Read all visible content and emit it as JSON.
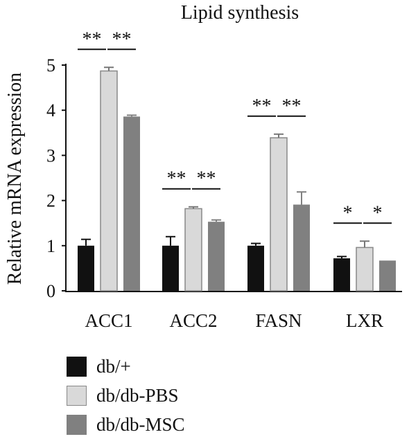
{
  "chart_data": {
    "type": "bar",
    "title": "Lipid synthesis",
    "ylabel": "Relative mRNA expression",
    "xlabel": "",
    "ylim": [
      0,
      5
    ],
    "yticks": [
      0,
      1,
      2,
      3,
      4,
      5
    ],
    "categories": [
      "ACC1",
      "ACC2",
      "FASN",
      "LXR"
    ],
    "series": [
      {
        "name": "db/+",
        "color": "#111111",
        "values": [
          1.0,
          1.0,
          1.0,
          0.72
        ],
        "errors": [
          0.14,
          0.2,
          0.05,
          0.04
        ]
      },
      {
        "name": "db/db-PBS",
        "color": "#d9d9d9",
        "values": [
          4.87,
          1.82,
          3.39,
          0.96
        ],
        "errors": [
          0.08,
          0.04,
          0.08,
          0.14
        ]
      },
      {
        "name": "db/db-MSC",
        "color": "#808080",
        "values": [
          3.86,
          1.53,
          1.91,
          0.67
        ],
        "errors": [
          0.03,
          0.04,
          0.28,
          0.0
        ]
      }
    ],
    "significance": [
      {
        "category": "ACC1",
        "labels": [
          "**",
          "**"
        ]
      },
      {
        "category": "ACC2",
        "labels": [
          "**",
          "**"
        ]
      },
      {
        "category": "FASN",
        "labels": [
          "**",
          "**"
        ]
      },
      {
        "category": "LXR",
        "labels": [
          "*",
          "*"
        ]
      }
    ],
    "legend_position": "bottom-left"
  }
}
